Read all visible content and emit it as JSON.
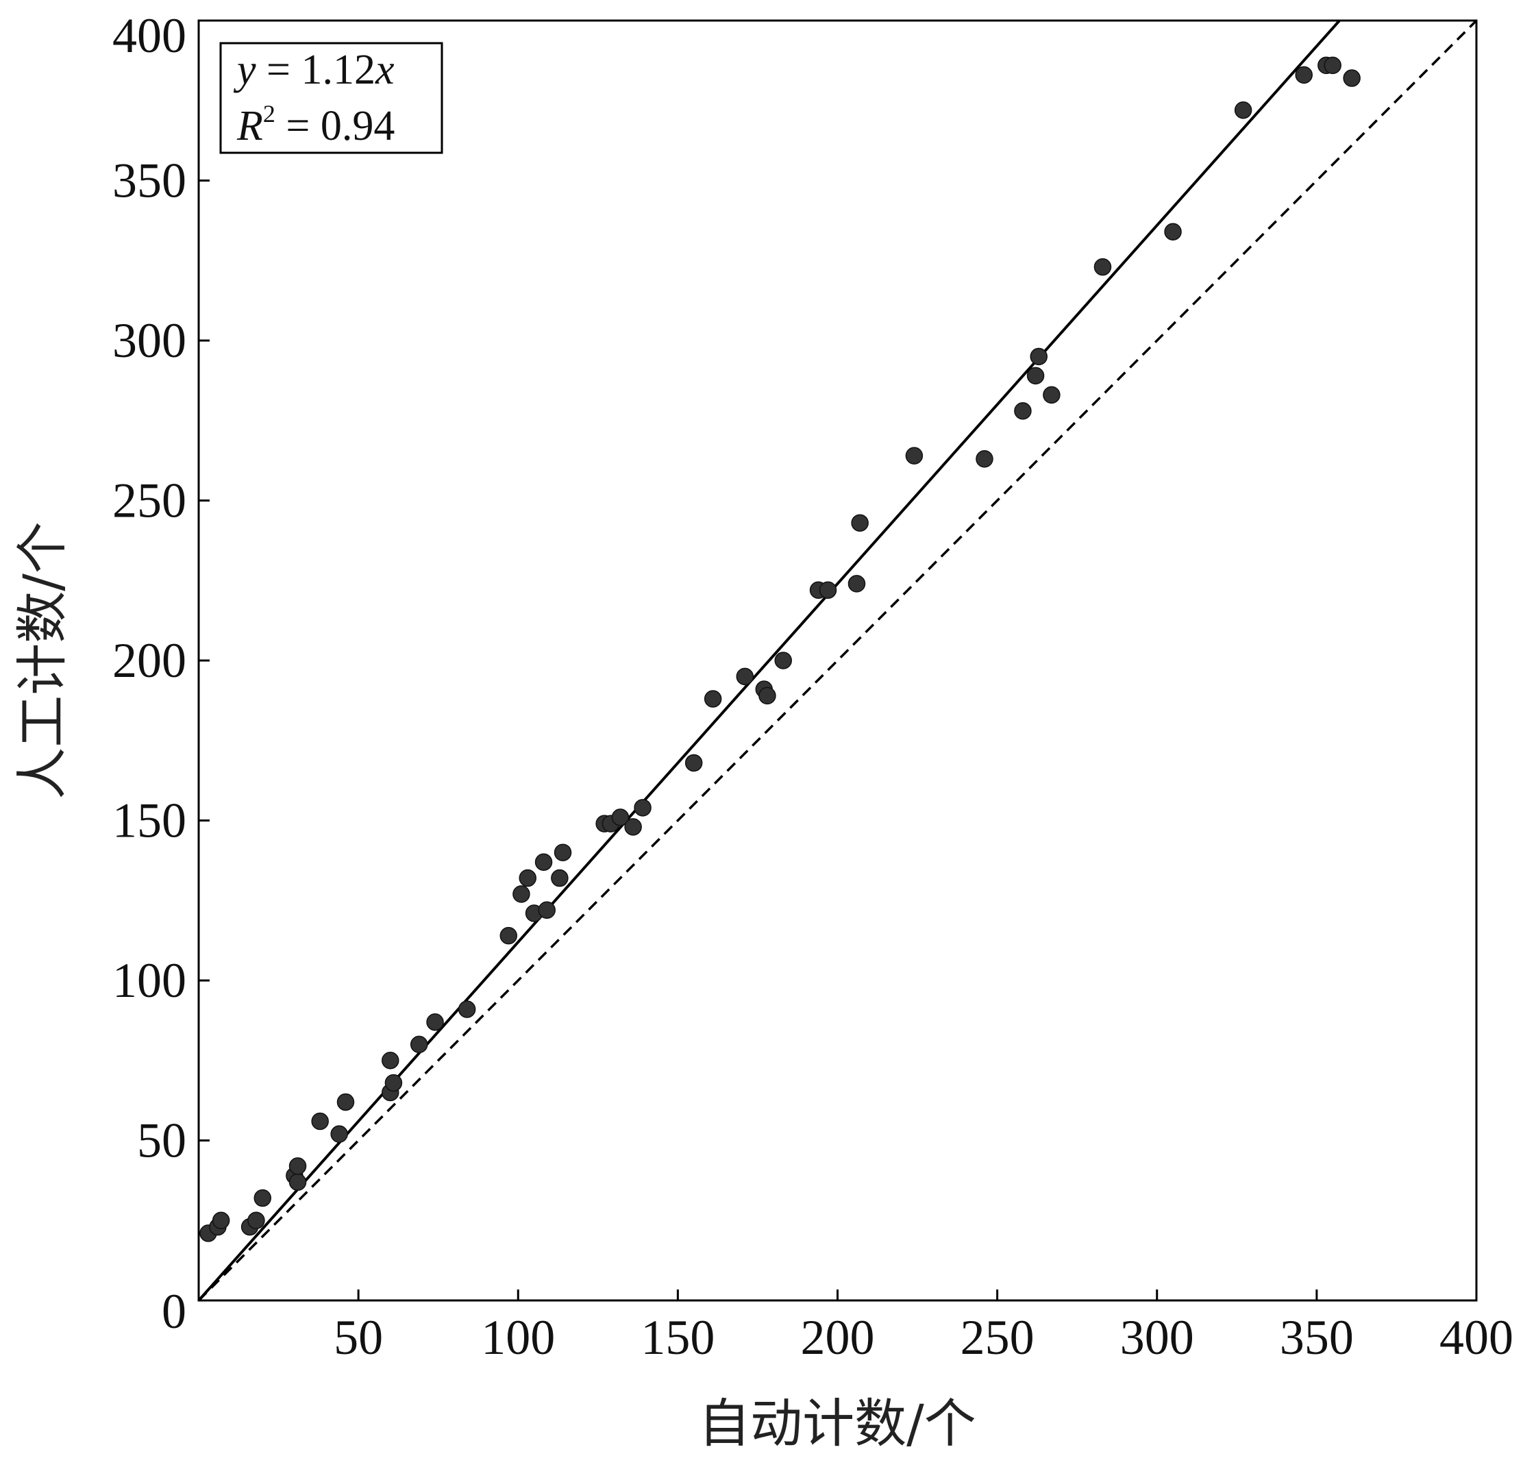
{
  "chart_data": {
    "type": "scatter",
    "xlabel": "自动计数/个",
    "ylabel": "人工计数/个",
    "xlim": [
      0,
      400
    ],
    "ylim": [
      0,
      400
    ],
    "xticks": [
      0,
      50,
      100,
      150,
      200,
      250,
      300,
      350,
      400
    ],
    "yticks": [
      0,
      50,
      100,
      150,
      200,
      250,
      300,
      350,
      400
    ],
    "grid": false,
    "annotation": {
      "equation_var_y": "y",
      "equation_rhs": " = 1.12",
      "equation_var_x": "x",
      "r2_var": "R",
      "r2_sup": "2",
      "r2_rhs": " = 0.94",
      "position": "top-left"
    },
    "fit_line": {
      "slope": 1.12,
      "style": "solid",
      "color": "#000000"
    },
    "reference_line": {
      "slope": 1.0,
      "style": "dashed",
      "color": "#000000"
    },
    "point_color": "#333333",
    "series": [
      {
        "points": [
          [
            3,
            21
          ],
          [
            6,
            23
          ],
          [
            7,
            25
          ],
          [
            16,
            23
          ],
          [
            18,
            25
          ],
          [
            20,
            32
          ],
          [
            30,
            39
          ],
          [
            31,
            37
          ],
          [
            31,
            42
          ],
          [
            38,
            56
          ],
          [
            44,
            52
          ],
          [
            46,
            62
          ],
          [
            60,
            65
          ],
          [
            60,
            75
          ],
          [
            61,
            68
          ],
          [
            69,
            80
          ],
          [
            74,
            87
          ],
          [
            84,
            91
          ],
          [
            97,
            114
          ],
          [
            101,
            127
          ],
          [
            103,
            132
          ],
          [
            105,
            121
          ],
          [
            108,
            137
          ],
          [
            109,
            122
          ],
          [
            113,
            132
          ],
          [
            114,
            140
          ],
          [
            127,
            149
          ],
          [
            129,
            149
          ],
          [
            132,
            151
          ],
          [
            136,
            148
          ],
          [
            139,
            154
          ],
          [
            155,
            168
          ],
          [
            161,
            188
          ],
          [
            171,
            195
          ],
          [
            177,
            191
          ],
          [
            178,
            189
          ],
          [
            183,
            200
          ],
          [
            194,
            222
          ],
          [
            197,
            222
          ],
          [
            206,
            224
          ],
          [
            207,
            243
          ],
          [
            224,
            264
          ],
          [
            246,
            263
          ],
          [
            258,
            278
          ],
          [
            262,
            289
          ],
          [
            263,
            295
          ],
          [
            267,
            283
          ],
          [
            283,
            323
          ],
          [
            305,
            334
          ],
          [
            327,
            372
          ],
          [
            346,
            383
          ],
          [
            353,
            386
          ],
          [
            355,
            386
          ],
          [
            361,
            382
          ]
        ]
      }
    ]
  }
}
